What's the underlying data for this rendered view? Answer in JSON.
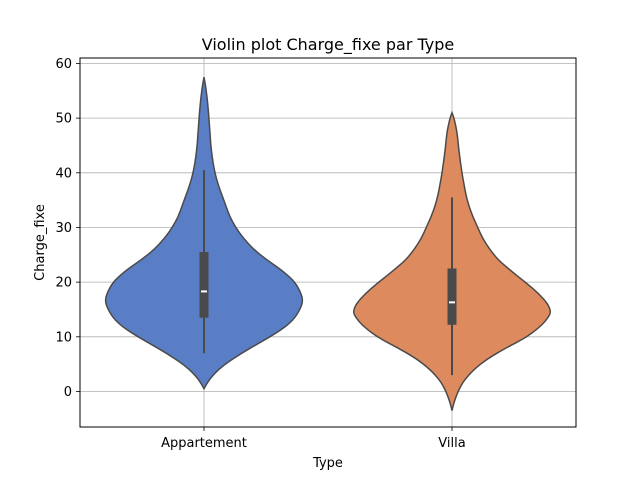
{
  "chart_data": {
    "type": "violin",
    "title": "Violin plot Charge_fixe par Type",
    "xlabel": "Type",
    "ylabel": "Charge_fixe",
    "ylim": [
      -6.5,
      61
    ],
    "yticks": [
      0,
      10,
      20,
      30,
      40,
      50,
      60
    ],
    "grid": true,
    "categories": [
      "Appartement",
      "Villa"
    ],
    "colors": [
      "#5a7ec6",
      "#dc8a5e"
    ],
    "violins": [
      {
        "category": "Appartement",
        "color": "#5a7ec6",
        "min": 0.5,
        "max": 57.5,
        "whisker_low": 7,
        "q1": 13.5,
        "median": 18.3,
        "q3": 25.5,
        "whisker_high": 40.5,
        "density": [
          [
            0.5,
            0.0
          ],
          [
            1.5,
            0.03
          ],
          [
            3,
            0.09
          ],
          [
            5,
            0.21
          ],
          [
            7,
            0.38
          ],
          [
            9,
            0.57
          ],
          [
            11,
            0.76
          ],
          [
            13,
            0.9
          ],
          [
            15,
            0.97
          ],
          [
            16.5,
            1.0
          ],
          [
            18,
            0.98
          ],
          [
            20,
            0.92
          ],
          [
            22,
            0.8
          ],
          [
            24,
            0.64
          ],
          [
            26,
            0.5
          ],
          [
            28,
            0.4
          ],
          [
            30,
            0.32
          ],
          [
            32,
            0.26
          ],
          [
            34,
            0.22
          ],
          [
            36,
            0.18
          ],
          [
            38,
            0.14
          ],
          [
            40,
            0.11
          ],
          [
            42,
            0.09
          ],
          [
            44,
            0.075
          ],
          [
            46,
            0.065
          ],
          [
            48,
            0.058
          ],
          [
            50,
            0.05
          ],
          [
            52,
            0.04
          ],
          [
            54,
            0.03
          ],
          [
            56,
            0.015
          ],
          [
            57.5,
            0.0
          ]
        ]
      },
      {
        "category": "Villa",
        "color": "#dc8a5e",
        "min": -3.5,
        "max": 51,
        "whisker_low": 3,
        "q1": 12.2,
        "median": 16.3,
        "q3": 22.5,
        "whisker_high": 35.5,
        "density": [
          [
            -3.5,
            0.0
          ],
          [
            -2,
            0.02
          ],
          [
            0,
            0.06
          ],
          [
            2,
            0.12
          ],
          [
            4,
            0.22
          ],
          [
            6,
            0.36
          ],
          [
            8,
            0.55
          ],
          [
            10,
            0.76
          ],
          [
            12,
            0.9
          ],
          [
            13.5,
            0.97
          ],
          [
            14.5,
            1.0
          ],
          [
            16,
            0.97
          ],
          [
            18,
            0.87
          ],
          [
            20,
            0.74
          ],
          [
            22,
            0.6
          ],
          [
            24,
            0.47
          ],
          [
            26,
            0.38
          ],
          [
            28,
            0.31
          ],
          [
            30,
            0.26
          ],
          [
            32,
            0.21
          ],
          [
            34,
            0.17
          ],
          [
            36,
            0.14
          ],
          [
            38,
            0.12
          ],
          [
            40,
            0.1
          ],
          [
            42,
            0.085
          ],
          [
            44,
            0.07
          ],
          [
            46,
            0.06
          ],
          [
            48,
            0.045
          ],
          [
            50,
            0.02
          ],
          [
            51,
            0.0
          ]
        ]
      }
    ]
  }
}
